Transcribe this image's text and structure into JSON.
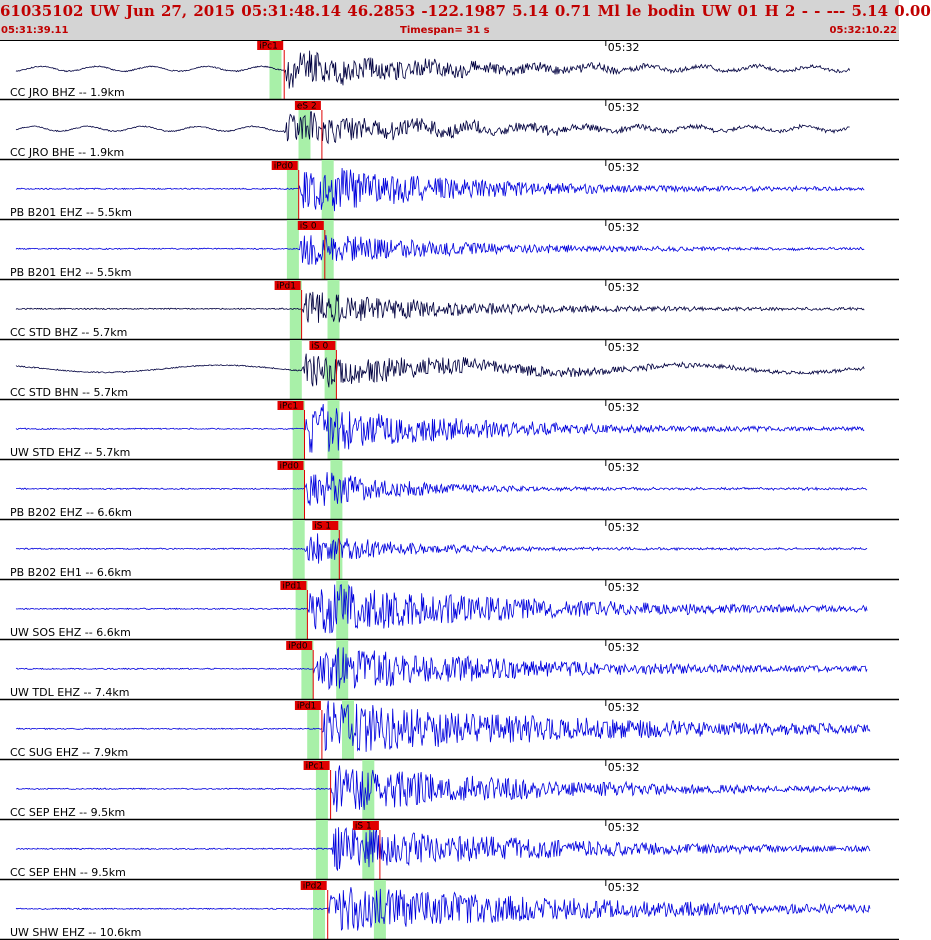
{
  "header": {
    "title": "61035102 UW Jun 27, 2015 05:31:48.14    46.2853 -122.1987  5.14 0.71 Ml le     bodin     UW 01 H     2   -   - ---   5.14 0.00",
    "start_time": "05:31:39.11",
    "timespan": "Timespan=  31 s",
    "end_time": "05:32:10.22"
  },
  "colors": {
    "header_bg": "#d4d4d4",
    "header_text": "#c00000",
    "trace_broadband": "#000040",
    "trace_short_period": "#0000dd",
    "pick_marker": "#e00000",
    "phase_window": "#a8f0a8"
  },
  "chart_data": {
    "type": "line",
    "title": "61035102 UW Jun 27, 2015 05:31:48.14",
    "time_range": [
      "05:31:39.11",
      "05:32:10.22"
    ],
    "timespan_s": 31,
    "tick_label": "05:32",
    "series": [
      {
        "name": "CC JRO BHZ -- 1.9km",
        "type": "broadband",
        "picks": [
          {
            "label": "iPc1",
            "time_s": 9.8
          }
        ],
        "windows": [
          9.5
        ],
        "signal_start_s": 9.8,
        "peak_amp": 0.3,
        "noise_amp": 0.04,
        "period_s": 1.9,
        "decay_s": 6,
        "end_s": 29.3
      },
      {
        "name": "CC JRO BHE -- 1.9km",
        "type": "broadband",
        "picks": [
          {
            "label": "eS 2",
            "time_s": 11.1
          }
        ],
        "windows": [
          10.5
        ],
        "signal_start_s": 9.8,
        "peak_amp": 0.28,
        "noise_amp": 0.04,
        "period_s": 1.9,
        "decay_s": 6,
        "end_s": 29.3
      },
      {
        "name": "PB B201 EHZ -- 5.5km",
        "type": "short_period",
        "picks": [
          {
            "label": "iPd0",
            "time_s": 10.3
          }
        ],
        "windows": [
          10.1,
          11.3
        ],
        "signal_start_s": 10.3,
        "peak_amp": 0.45,
        "noise_amp": 0.0,
        "period_s": 0,
        "decay_s": 5,
        "end_s": 29.8
      },
      {
        "name": "PB B201 EH2 -- 5.5km",
        "type": "short_period",
        "picks": [
          {
            "label": "iS 0",
            "time_s": 11.2
          }
        ],
        "windows": [
          10.1,
          11.3
        ],
        "signal_start_s": 10.3,
        "peak_amp": 0.3,
        "noise_amp": 0.0,
        "period_s": 0,
        "decay_s": 5,
        "end_s": 29.8
      },
      {
        "name": "CC STD BHZ -- 5.7km",
        "type": "broadband",
        "picks": [
          {
            "label": "iPd1",
            "time_s": 10.4
          }
        ],
        "windows": [
          10.2,
          11.5
        ],
        "signal_start_s": 10.4,
        "peak_amp": 0.3,
        "noise_amp": 0.0,
        "period_s": 0,
        "decay_s": 5,
        "end_s": 29.8
      },
      {
        "name": "CC STD BHN -- 5.7km",
        "type": "broadband",
        "picks": [
          {
            "label": "iS 0",
            "time_s": 11.6
          }
        ],
        "windows": [
          10.2,
          11.4
        ],
        "signal_start_s": 10.4,
        "peak_amp": 0.3,
        "noise_amp": 0.06,
        "period_s": 8,
        "decay_s": 6,
        "end_s": 29.8
      },
      {
        "name": "UW STD EHZ -- 5.7km",
        "type": "short_period",
        "picks": [
          {
            "label": "iPc1",
            "time_s": 10.5
          }
        ],
        "windows": [
          10.3,
          11.5
        ],
        "signal_start_s": 10.5,
        "peak_amp": 0.45,
        "noise_amp": 0.0,
        "period_s": 0,
        "decay_s": 5,
        "end_s": 29.8
      },
      {
        "name": "PB B202 EHZ -- 6.6km",
        "type": "short_period",
        "picks": [
          {
            "label": "iPd0",
            "time_s": 10.5
          }
        ],
        "windows": [
          10.3,
          11.6
        ],
        "signal_start_s": 10.5,
        "peak_amp": 0.35,
        "noise_amp": 0.0,
        "period_s": 0,
        "decay_s": 3,
        "end_s": 29.9
      },
      {
        "name": "PB B202 EH1 -- 6.6km",
        "type": "short_period",
        "picks": [
          {
            "label": "iS 1",
            "time_s": 11.7
          }
        ],
        "windows": [
          10.3,
          11.6
        ],
        "signal_start_s": 10.5,
        "peak_amp": 0.3,
        "noise_amp": 0.0,
        "period_s": 0,
        "decay_s": 3,
        "end_s": 29.9
      },
      {
        "name": "UW SOS EHZ -- 6.6km",
        "type": "short_period",
        "picks": [
          {
            "label": "iPd1",
            "time_s": 10.6
          }
        ],
        "windows": [
          10.4,
          11.8
        ],
        "signal_start_s": 10.6,
        "peak_amp": 0.45,
        "noise_amp": 0.0,
        "period_s": 0,
        "decay_s": 7,
        "end_s": 29.9
      },
      {
        "name": "UW TDL EHZ -- 7.4km",
        "type": "short_period",
        "picks": [
          {
            "label": "iPd0",
            "time_s": 10.8
          }
        ],
        "windows": [
          10.6,
          11.8
        ],
        "signal_start_s": 10.8,
        "peak_amp": 0.4,
        "noise_amp": 0.0,
        "period_s": 0,
        "decay_s": 7,
        "end_s": 29.9
      },
      {
        "name": "CC SUG EHZ -- 7.9km",
        "type": "short_period",
        "picks": [
          {
            "label": "iPd1",
            "time_s": 11.1
          }
        ],
        "windows": [
          10.8,
          12.0
        ],
        "signal_start_s": 11.1,
        "peak_amp": 0.45,
        "noise_amp": 0.0,
        "period_s": 0,
        "decay_s": 9,
        "end_s": 30.0
      },
      {
        "name": "CC SEP EHZ -- 9.5km",
        "type": "short_period",
        "picks": [
          {
            "label": "iPc1",
            "time_s": 11.4
          }
        ],
        "windows": [
          11.1,
          12.7
        ],
        "signal_start_s": 11.4,
        "peak_amp": 0.4,
        "noise_amp": 0.0,
        "period_s": 0,
        "decay_s": 7,
        "end_s": 30.0
      },
      {
        "name": "CC SEP EHN -- 9.5km",
        "type": "short_period",
        "picks": [
          {
            "label": "iS 1",
            "time_s": 13.1
          }
        ],
        "windows": [
          11.1,
          12.7
        ],
        "signal_start_s": 11.4,
        "peak_amp": 0.4,
        "noise_amp": 0.0,
        "period_s": 0,
        "decay_s": 7,
        "end_s": 30.0
      },
      {
        "name": "UW SHW EHZ -- 10.6km",
        "type": "short_period",
        "picks": [
          {
            "label": "iPd2",
            "time_s": 11.3
          }
        ],
        "windows": [
          11.0,
          13.1
        ],
        "signal_start_s": 11.3,
        "peak_amp": 0.4,
        "noise_amp": 0.0,
        "period_s": 0,
        "decay_s": 9,
        "end_s": 30.0
      }
    ]
  }
}
